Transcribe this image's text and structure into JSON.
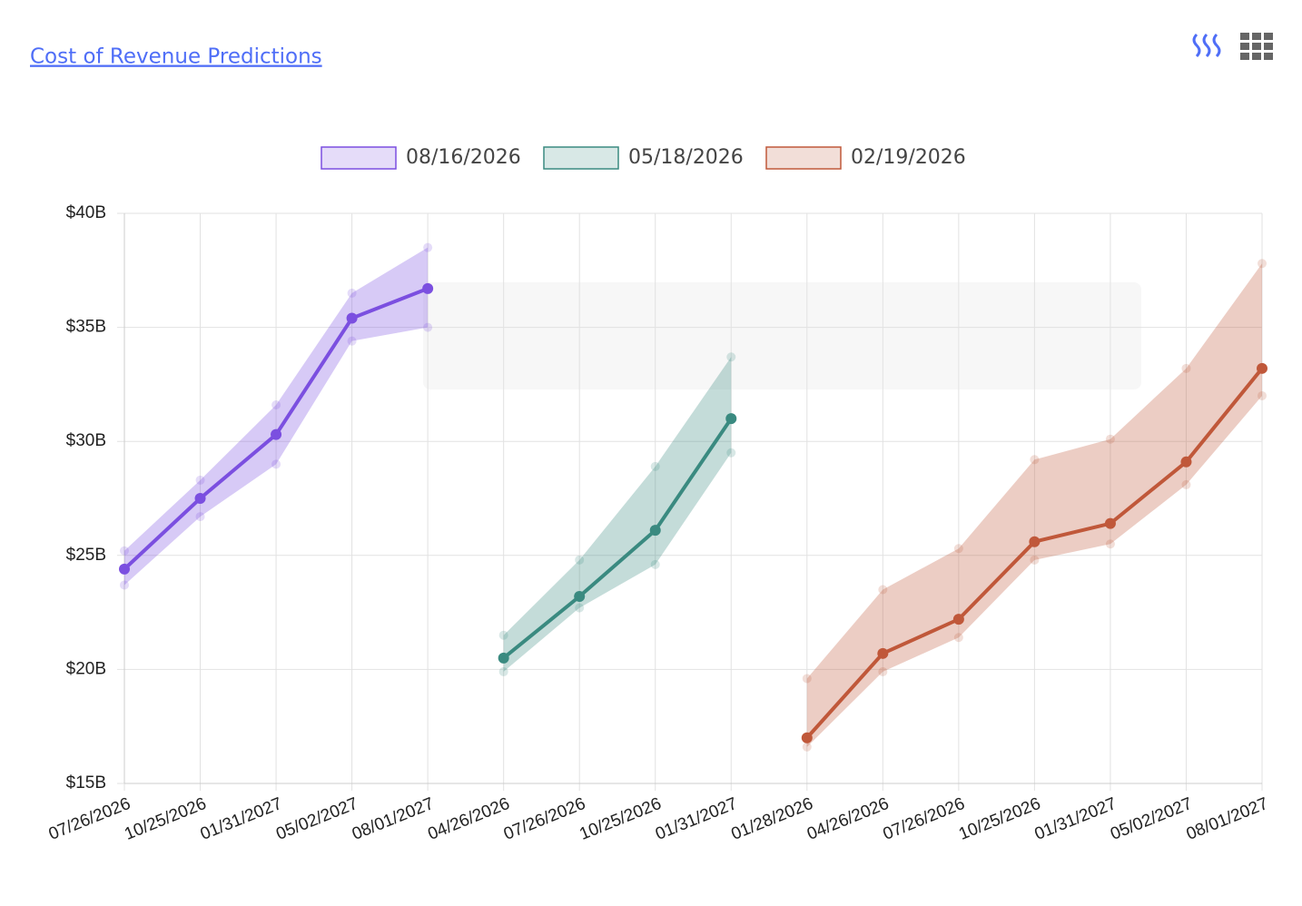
{
  "chart_data": {
    "type": "line",
    "title": "Cost of Revenue Predictions",
    "categories": [
      "07/26/2026",
      "10/25/2026",
      "01/31/2027",
      "05/02/2027",
      "08/01/2027",
      "04/26/2026",
      "07/26/2026",
      "10/25/2026",
      "01/31/2027",
      "01/28/2026",
      "04/26/2026",
      "07/26/2026",
      "10/25/2026",
      "01/31/2027",
      "05/02/2027",
      "08/01/2027"
    ],
    "series": [
      {
        "name": "08/16/2026",
        "color": "#7b4fe0",
        "values": [
          24.4,
          27.5,
          30.3,
          35.4,
          36.7,
          null,
          null,
          null,
          null,
          null,
          null,
          null,
          null,
          null,
          null,
          null
        ],
        "upper": [
          25.2,
          28.3,
          31.6,
          36.5,
          38.5,
          null,
          null,
          null,
          null,
          null,
          null,
          null,
          null,
          null,
          null,
          null
        ],
        "lower": [
          23.7,
          26.7,
          29.0,
          34.4,
          35.0,
          null,
          null,
          null,
          null,
          null,
          null,
          null,
          null,
          null,
          null,
          null
        ]
      },
      {
        "name": "05/18/2026",
        "color": "#3a8a80",
        "values": [
          null,
          null,
          null,
          null,
          null,
          20.5,
          23.2,
          26.1,
          31.0,
          null,
          null,
          null,
          null,
          null,
          null,
          null
        ],
        "upper": [
          null,
          null,
          null,
          null,
          null,
          21.5,
          24.8,
          28.9,
          33.7,
          null,
          null,
          null,
          null,
          null,
          null,
          null
        ],
        "lower": [
          null,
          null,
          null,
          null,
          null,
          19.9,
          22.7,
          24.6,
          29.5,
          null,
          null,
          null,
          null,
          null,
          null,
          null
        ]
      },
      {
        "name": "02/19/2026",
        "color": "#c0583a",
        "values": [
          null,
          null,
          null,
          null,
          null,
          null,
          null,
          null,
          null,
          17.0,
          20.7,
          22.2,
          25.6,
          26.4,
          29.1,
          33.2
        ],
        "upper": [
          null,
          null,
          null,
          null,
          null,
          null,
          null,
          null,
          null,
          19.6,
          23.5,
          25.3,
          29.2,
          30.1,
          33.2,
          37.8
        ],
        "lower": [
          null,
          null,
          null,
          null,
          null,
          null,
          null,
          null,
          null,
          16.6,
          19.9,
          21.4,
          24.8,
          25.5,
          28.1,
          32.0
        ]
      }
    ],
    "ylim": [
      15,
      40
    ],
    "yticks": [
      {
        "value": 15,
        "label": "$15B"
      },
      {
        "value": 20,
        "label": "$20B"
      },
      {
        "value": 25,
        "label": "$25B"
      },
      {
        "value": 30,
        "label": "$30B"
      },
      {
        "value": 35,
        "label": "$35B"
      },
      {
        "value": 40,
        "label": "$40B"
      }
    ],
    "grid": true,
    "legend": "top"
  }
}
